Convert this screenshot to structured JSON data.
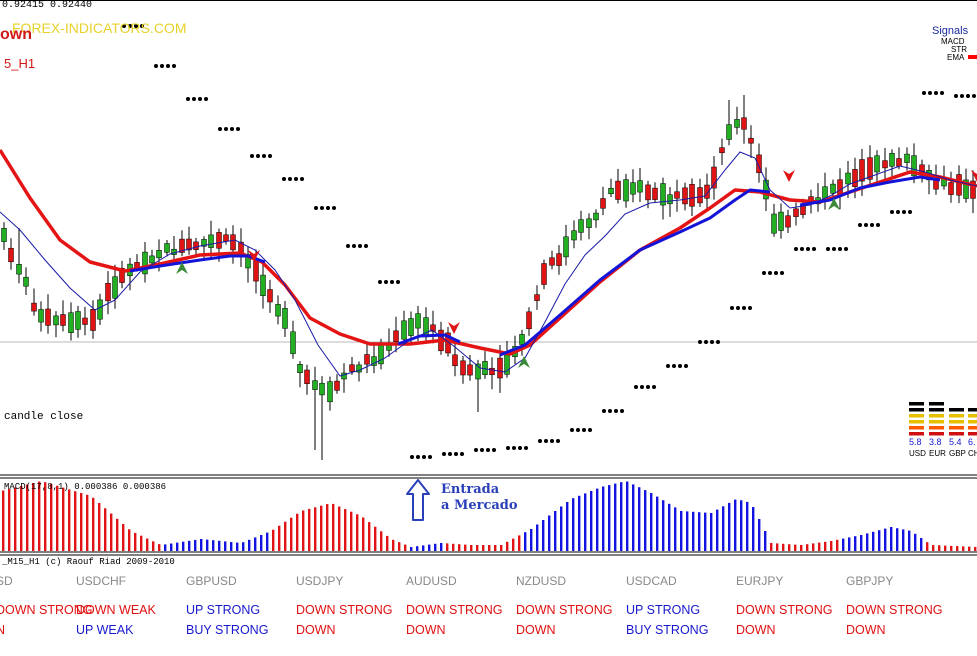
{
  "header": {
    "price_line": "0.92415 0.92440",
    "watermark": "FOREX-INDICATORS.COM",
    "trend_label": "own",
    "timeframe_label": "5_H1",
    "candle_note": "candle close"
  },
  "signals_panel": {
    "title": "Signals",
    "rows": [
      {
        "label": "MACD",
        "color": "#000000"
      },
      {
        "label": "STR",
        "color": "#000000"
      },
      {
        "label": "EMA",
        "color": "#ff0000"
      }
    ]
  },
  "macd": {
    "label": "MACD(17,8,1) 0.000386 0.000386",
    "colors": {
      "positive_up": "#ff0000",
      "positive_blue": "#0000ff"
    }
  },
  "annotation": {
    "line1": "Entrada",
    "line2": "a Mercado",
    "arrow_icon": "up-arrow-icon"
  },
  "strength_meter": {
    "items": [
      {
        "value": "5.8",
        "currency": "USD"
      },
      {
        "value": "3.8",
        "currency": "EUR"
      },
      {
        "value": "5.4",
        "currency": "GBP"
      },
      {
        "value": "6.",
        "currency": "CH"
      }
    ]
  },
  "footer": {
    "copyright": "_M15_H1 (c) Raouf Riad 2009-2010",
    "pairs": [
      {
        "name": "SD",
        "line1": "DOWN STRONG",
        "line1_color": "red",
        "line2": "N",
        "line2_color": "red"
      },
      {
        "name": "USDCHF",
        "line1": "DOWN WEAK",
        "line1_color": "red",
        "line2": "UP WEAK",
        "line2_color": "blue"
      },
      {
        "name": "GBPUSD",
        "line1": "UP STRONG",
        "line1_color": "blue",
        "line2": "BUY STRONG",
        "line2_color": "blue"
      },
      {
        "name": "USDJPY",
        "line1": "DOWN STRONG",
        "line1_color": "red",
        "line2": "DOWN",
        "line2_color": "red"
      },
      {
        "name": "AUDUSD",
        "line1": "DOWN STRONG",
        "line1_color": "red",
        "line2": "DOWN",
        "line2_color": "red"
      },
      {
        "name": "NZDUSD",
        "line1": "DOWN STRONG",
        "line1_color": "red",
        "line2": "DOWN",
        "line2_color": "red"
      },
      {
        "name": "USDCAD",
        "line1": "UP STRONG",
        "line1_color": "blue",
        "line2": "BUY STRONG",
        "line2_color": "blue"
      },
      {
        "name": "EURJPY",
        "line1": "DOWN STRONG",
        "line1_color": "red",
        "line2": "DOWN",
        "line2_color": "red"
      },
      {
        "name": "GBPJPY",
        "line1": "DOWN STRONG",
        "line1_color": "red",
        "line2": "DOWN",
        "line2_color": "red"
      }
    ]
  }
}
